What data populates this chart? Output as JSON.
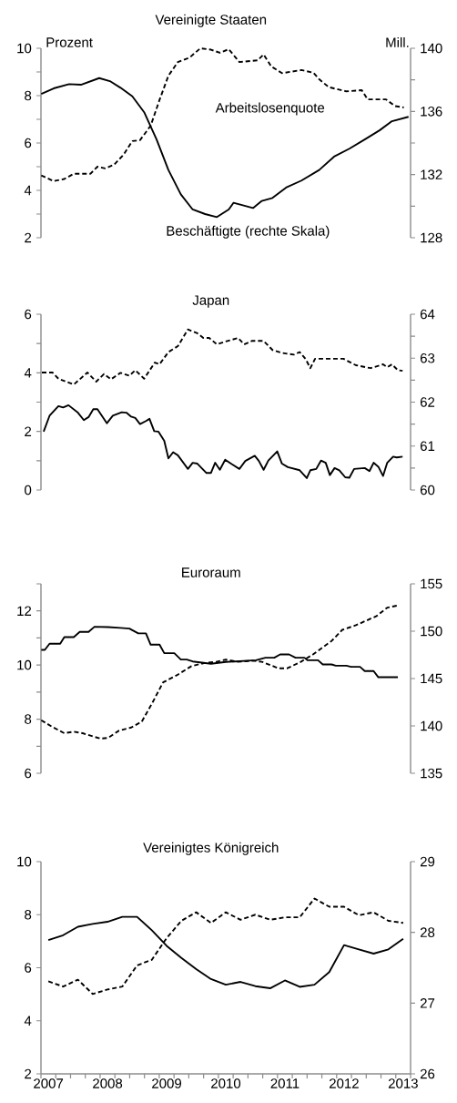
{
  "chart_data": [
    {
      "type": "line",
      "title": "Vereinigte Staaten",
      "ylabel": "Prozent",
      "y2label": "Mill.",
      "xlim": [
        2006.875,
        2013.125
      ],
      "tick_labels": "y",
      "ylim": [
        2,
        10
      ],
      "yticks": [
        2,
        {
          "value": 3,
          "label": null
        },
        4,
        {
          "value": 5,
          "label": null
        },
        6,
        {
          "value": 7,
          "label": null
        },
        8,
        {
          "value": 9,
          "label": null
        },
        10
      ],
      "y2lim": [
        128,
        140
      ],
      "y2ticks": [
        128,
        {
          "value": 130,
          "label": null
        },
        132,
        {
          "value": 134,
          "label": null
        },
        136,
        {
          "value": 138,
          "label": null
        },
        140
      ],
      "series": [
        {
          "name": "Arbeitslosenquote",
          "color": "#000000",
          "line_style": "dashed",
          "x": [
            2006.88,
            2007.09,
            2007.27,
            2007.43,
            2007.71,
            2007.83,
            2007.96,
            2008.11,
            2008.27,
            2008.42,
            2008.55,
            2008.73,
            2008.88,
            2009.03,
            2009.19,
            2009.39,
            2009.57,
            2009.75,
            2009.9,
            2010.05,
            2010.23,
            2010.54,
            2010.64,
            2010.77,
            2010.95,
            2011.28,
            2011.48,
            2011.58,
            2011.74,
            2012.04,
            2012.3,
            2012.4,
            2012.71,
            2012.86,
            2013.01
          ],
          "values": [
            4.63,
            4.39,
            4.48,
            4.7,
            4.7,
            5.0,
            4.93,
            5.08,
            5.5,
            6.08,
            6.12,
            6.73,
            7.82,
            8.84,
            9.42,
            9.61,
            10.0,
            9.94,
            9.81,
            9.96,
            9.42,
            9.49,
            9.74,
            9.23,
            8.95,
            9.08,
            8.97,
            8.69,
            8.36,
            8.18,
            8.23,
            7.84,
            7.84,
            7.56,
            7.5
          ]
        },
        {
          "name": "Beschäftigte (rechte Skala)",
          "color": "#000000",
          "line_style": "solid",
          "axis": "y2",
          "x": [
            2006.88,
            2007.09,
            2007.35,
            2007.55,
            2007.86,
            2008.04,
            2008.22,
            2008.42,
            2008.62,
            2008.83,
            2009.03,
            2009.24,
            2009.44,
            2009.65,
            2009.85,
            2010.05,
            2010.13,
            2010.46,
            2010.61,
            2010.79,
            2011.02,
            2011.28,
            2011.58,
            2011.84,
            2012.09,
            2012.35,
            2012.6,
            2012.81,
            2013.09
          ],
          "values": [
            137.11,
            137.46,
            137.73,
            137.69,
            138.11,
            137.92,
            137.5,
            136.96,
            135.95,
            134.22,
            132.29,
            130.75,
            129.79,
            129.5,
            129.31,
            129.79,
            130.21,
            129.88,
            130.33,
            130.52,
            131.18,
            131.62,
            132.29,
            133.16,
            133.64,
            134.22,
            134.8,
            135.38,
            135.66
          ]
        }
      ]
    },
    {
      "type": "line",
      "title": "Japan",
      "xlim": [
        2006.875,
        2013.125
      ],
      "tick_labels": "y",
      "ylim": [
        0,
        6
      ],
      "yticks": [
        0,
        {
          "value": 1,
          "label": null
        },
        2,
        {
          "value": 3,
          "label": null
        },
        4,
        {
          "value": 5,
          "label": null
        },
        6
      ],
      "y2lim": [
        60,
        64
      ],
      "y2ticks": [
        60,
        {
          "value": 60.5,
          "label": null
        },
        61,
        {
          "value": 61.5,
          "label": null
        },
        62,
        {
          "value": 62.5,
          "label": null
        },
        63,
        {
          "value": 63.5,
          "label": null
        },
        64
      ],
      "series": [
        {
          "color": "#000000",
          "line_style": "dashed",
          "x": [
            2006.89,
            2007.07,
            2007.17,
            2007.43,
            2007.66,
            2007.81,
            2007.94,
            2008.06,
            2008.22,
            2008.37,
            2008.47,
            2008.62,
            2008.8,
            2008.88,
            2009.03,
            2009.19,
            2009.36,
            2009.52,
            2009.62,
            2009.72,
            2009.85,
            2010.0,
            2010.21,
            2010.31,
            2010.44,
            2010.64,
            2010.79,
            2010.95,
            2011.15,
            2011.25,
            2011.35,
            2011.43,
            2011.51,
            2011.99,
            2012.2,
            2012.45,
            2012.66,
            2012.73,
            2012.81,
            2012.91,
            2012.99
          ],
          "values": [
            4.01,
            4.01,
            3.8,
            3.6,
            4.01,
            3.7,
            3.96,
            3.78,
            4.0,
            3.9,
            4.09,
            3.8,
            4.35,
            4.29,
            4.71,
            4.91,
            5.48,
            5.35,
            5.19,
            5.19,
            4.97,
            5.07,
            5.19,
            4.97,
            5.09,
            5.09,
            4.78,
            4.68,
            4.62,
            4.71,
            4.47,
            4.16,
            4.48,
            4.48,
            4.26,
            4.16,
            4.29,
            4.19,
            4.29,
            4.09,
            4.07
          ]
        },
        {
          "color": "#000000",
          "line_style": "solid",
          "axis": "y2",
          "x": [
            2006.92,
            2007.02,
            2007.17,
            2007.25,
            2007.34,
            2007.5,
            2007.6,
            2007.68,
            2007.76,
            2007.83,
            2007.99,
            2008.09,
            2008.24,
            2008.32,
            2008.4,
            2008.47,
            2008.55,
            2008.65,
            2008.71,
            2008.79,
            2008.86,
            2008.96,
            2009.03,
            2009.11,
            2009.19,
            2009.36,
            2009.44,
            2009.52,
            2009.67,
            2009.75,
            2009.82,
            2009.9,
            2009.99,
            2010.1,
            2010.23,
            2010.33,
            2010.49,
            2010.56,
            2010.64,
            2010.72,
            2010.87,
            2010.95,
            2011.05,
            2011.25,
            2011.37,
            2011.43,
            2011.53,
            2011.61,
            2011.69,
            2011.76,
            2011.84,
            2011.92,
            2012.02,
            2012.09,
            2012.17,
            2012.35,
            2012.43,
            2012.5,
            2012.58,
            2012.66,
            2012.73,
            2012.83,
            2012.89,
            2012.99
          ],
          "values": [
            61.33,
            61.69,
            61.91,
            61.88,
            61.93,
            61.76,
            61.59,
            61.66,
            61.84,
            61.84,
            61.52,
            61.69,
            61.77,
            61.76,
            61.67,
            61.64,
            61.5,
            61.57,
            61.62,
            61.34,
            61.33,
            61.12,
            60.72,
            60.86,
            60.79,
            60.48,
            60.62,
            60.6,
            60.39,
            60.39,
            60.62,
            60.46,
            60.69,
            60.59,
            60.48,
            60.66,
            60.78,
            60.66,
            60.46,
            60.67,
            60.88,
            60.6,
            60.52,
            60.45,
            60.27,
            60.45,
            60.48,
            60.67,
            60.62,
            60.34,
            60.5,
            60.45,
            60.29,
            60.28,
            60.48,
            60.5,
            60.43,
            60.62,
            60.53,
            60.32,
            60.62,
            60.76,
            60.74,
            60.76
          ]
        }
      ]
    },
    {
      "type": "line",
      "title": "Euroraum",
      "xlim": [
        2006.875,
        2013.125
      ],
      "tick_labels": "y",
      "ylim": [
        6,
        13
      ],
      "yticks": [
        6,
        {
          "value": 7,
          "label": null
        },
        8,
        {
          "value": 9,
          "label": null
        },
        10,
        {
          "value": 11,
          "label": null
        },
        12,
        {
          "value": 13,
          "label": null
        }
      ],
      "y2lim": [
        135,
        155
      ],
      "y2ticks": [
        135,
        140,
        145,
        150,
        155
      ],
      "series": [
        {
          "color": "#000000",
          "line_style": "dashed",
          "x": [
            2006.88,
            2007.07,
            2007.27,
            2007.43,
            2007.58,
            2007.88,
            2008.01,
            2008.19,
            2008.4,
            2008.58,
            2008.76,
            2008.94,
            2009.17,
            2009.42,
            2009.63,
            2009.84,
            2010.0,
            2010.2,
            2010.46,
            2010.61,
            2010.89,
            2011.04,
            2011.27,
            2011.48,
            2011.79,
            2011.97,
            2012.2,
            2012.55,
            2012.73,
            2012.91
          ],
          "values": [
            7.96,
            7.71,
            7.48,
            7.54,
            7.48,
            7.28,
            7.31,
            7.57,
            7.69,
            7.91,
            8.61,
            9.36,
            9.62,
            9.96,
            10.07,
            10.12,
            10.2,
            10.12,
            10.16,
            10.12,
            9.88,
            9.88,
            10.12,
            10.4,
            10.89,
            11.3,
            11.47,
            11.81,
            12.12,
            12.2
          ]
        },
        {
          "color": "#000000",
          "line_style": "solid",
          "axis": "y2",
          "x": [
            2006.88,
            2006.94,
            2007.02,
            2007.2,
            2007.27,
            2007.43,
            2007.53,
            2007.68,
            2007.78,
            2008.01,
            2008.22,
            2008.37,
            2008.52,
            2008.65,
            2008.73,
            2008.88,
            2008.96,
            2009.13,
            2009.24,
            2009.34,
            2009.44,
            2009.75,
            2010.0,
            2010.51,
            2010.67,
            2010.82,
            2010.92,
            2011.07,
            2011.18,
            2011.33,
            2011.38,
            2011.56,
            2011.64,
            2011.79,
            2011.86,
            2012.04,
            2012.12,
            2012.27,
            2012.35,
            2012.5,
            2012.58,
            2012.91
          ],
          "values": [
            148.03,
            148.03,
            148.68,
            148.68,
            149.38,
            149.38,
            149.93,
            149.93,
            150.47,
            150.44,
            150.35,
            150.28,
            149.77,
            149.77,
            148.58,
            148.58,
            147.68,
            147.68,
            147.01,
            147.01,
            146.81,
            146.56,
            146.75,
            146.94,
            147.2,
            147.2,
            147.55,
            147.55,
            147.2,
            147.2,
            146.94,
            146.94,
            146.49,
            146.49,
            146.36,
            146.36,
            146.24,
            146.24,
            145.79,
            145.79,
            145.14,
            145.14
          ]
        }
      ]
    },
    {
      "type": "line",
      "title": "Vereinigtes Königreich",
      "xlim": [
        2006.875,
        2013.125
      ],
      "xticks": [
        {
          "value": 2006.875,
          "label": null
        },
        2007,
        {
          "value": 2007.125,
          "label": null
        },
        {
          "value": 2007.375,
          "label": null
        },
        {
          "value": 2007.625,
          "label": null
        },
        {
          "value": 2007.875,
          "label": null
        },
        2008,
        {
          "value": 2008.125,
          "label": null
        },
        {
          "value": 2008.375,
          "label": null
        },
        {
          "value": 2008.625,
          "label": null
        },
        {
          "value": 2008.875,
          "label": null
        },
        2009,
        {
          "value": 2009.125,
          "label": null
        },
        {
          "value": 2009.375,
          "label": null
        },
        {
          "value": 2009.625,
          "label": null
        },
        {
          "value": 2009.875,
          "label": null
        },
        2010,
        {
          "value": 2010.125,
          "label": null
        },
        {
          "value": 2010.375,
          "label": null
        },
        {
          "value": 2010.625,
          "label": null
        },
        {
          "value": 2010.875,
          "label": null
        },
        2011,
        {
          "value": 2011.125,
          "label": null
        },
        {
          "value": 2011.375,
          "label": null
        },
        {
          "value": 2011.625,
          "label": null
        },
        {
          "value": 2011.875,
          "label": null
        },
        2012,
        {
          "value": 2012.125,
          "label": null
        },
        {
          "value": 2012.375,
          "label": null
        },
        {
          "value": 2012.625,
          "label": null
        },
        {
          "value": 2012.875,
          "label": null
        },
        2013,
        {
          "value": 2013.125,
          "label": null
        }
      ],
      "ylim": [
        2,
        10
      ],
      "yticks": [
        2,
        4,
        6,
        8,
        10
      ],
      "y2lim": [
        26,
        29
      ],
      "y2ticks": [
        26,
        27,
        28,
        29
      ],
      "series": [
        {
          "color": "#000000",
          "line_style": "dashed",
          "x": [
            2007,
            2007.25,
            2007.5,
            2007.75,
            2008,
            2008.25,
            2008.5,
            2008.75,
            2009,
            2009.25,
            2009.5,
            2009.75,
            2010,
            2010.25,
            2010.5,
            2010.75,
            2011,
            2011.25,
            2011.5,
            2011.75,
            2012,
            2012.25,
            2012.5,
            2012.75,
            2013
          ],
          "values": [
            5.49,
            5.29,
            5.55,
            5.01,
            5.18,
            5.29,
            6.09,
            6.3,
            7.12,
            7.77,
            8.09,
            7.69,
            8.09,
            7.81,
            8.0,
            7.81,
            7.9,
            7.9,
            8.61,
            8.3,
            8.3,
            7.98,
            8.09,
            7.77,
            7.69
          ]
        },
        {
          "color": "#000000",
          "line_style": "solid",
          "axis": "y2",
          "x": [
            2007,
            2007.25,
            2007.5,
            2007.75,
            2008,
            2008.25,
            2008.5,
            2008.75,
            2009,
            2009.25,
            2009.5,
            2009.75,
            2010,
            2010.25,
            2010.5,
            2010.75,
            2011,
            2011.25,
            2011.5,
            2011.75,
            2012,
            2012.25,
            2012.5,
            2012.75,
            2013
          ],
          "values": [
            27.89,
            27.96,
            28.08,
            28.12,
            28.15,
            28.22,
            28.22,
            28.03,
            27.81,
            27.64,
            27.48,
            27.34,
            27.26,
            27.3,
            27.24,
            27.21,
            27.32,
            27.23,
            27.26,
            27.44,
            27.82,
            27.76,
            27.7,
            27.76,
            27.91
          ]
        }
      ]
    }
  ]
}
